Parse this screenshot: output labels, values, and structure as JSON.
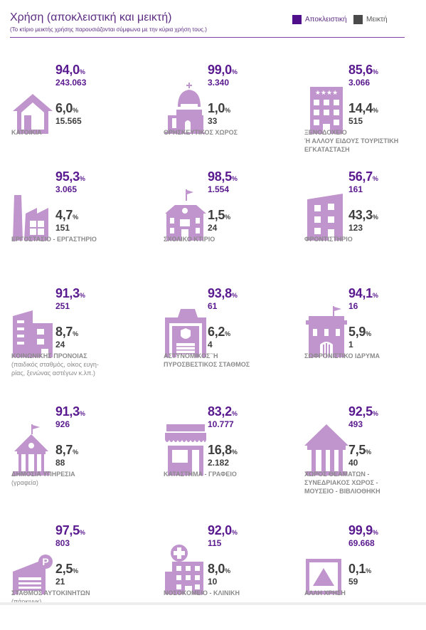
{
  "header": {
    "title": "Χρήση (αποκλειστική και μεικτή)",
    "subtitle": "(Το κτίριο μεικτής χρήσης παρουσιάζονται σύμφωνα με την κύρια χρήση τους.)",
    "legend": [
      {
        "label": "Αποκλειστική",
        "color": "#4f0f8a"
      },
      {
        "label": "Μεικτή",
        "color": "#4a4a4a"
      }
    ]
  },
  "colors": {
    "icon": "#c094cc",
    "exclusive": "#5a1a8f",
    "mixed": "#3e3e3e",
    "label": "#8a8a8a"
  },
  "percent_sign": "%",
  "items": [
    {
      "icon": "house-icon",
      "excl_pct": "94,0",
      "excl_count": "243.063",
      "mixed_pct": "6,0",
      "mixed_count": "15.565",
      "label": "ΚΑΤΟΙΚΙΑ",
      "note": ""
    },
    {
      "icon": "church-icon",
      "excl_pct": "99,0",
      "excl_count": "3.340",
      "mixed_pct": "1,0",
      "mixed_count": "33",
      "label": "ΘΡΗΣΚΕΥΤΙΚΟΣ ΧΩΡΟΣ",
      "note": ""
    },
    {
      "icon": "hotel-icon",
      "excl_pct": "85,6",
      "excl_count": "3.066",
      "mixed_pct": "14,4",
      "mixed_count": "515",
      "label": "ΞΕΝΟΔΟΧΕΙΟ\nΉ ΑΛΛΟΥ ΕΙΔΟΥΣ ΤΟΥΡΙΣΤΙΚΗ\nΕΓΚΑΤΑΣΤΑΣΗ",
      "note": ""
    },
    {
      "icon": "factory-icon",
      "excl_pct": "95,3",
      "excl_count": "3.065",
      "mixed_pct": "4,7",
      "mixed_count": "151",
      "label": "ΕΡΓΟΣΤΑΣΙΟ - ΕΡΓΑΣΤΗΡΙΟ",
      "note": ""
    },
    {
      "icon": "school-icon",
      "excl_pct": "98,5",
      "excl_count": "1.554",
      "mixed_pct": "1,5",
      "mixed_count": "24",
      "label": "ΣΧΟΛΙΚΟ ΚΤΙΡΙΟ",
      "note": ""
    },
    {
      "icon": "tutoring-building-icon",
      "excl_pct": "56,7",
      "excl_count": "161",
      "mixed_pct": "43,3",
      "mixed_count": "123",
      "label": "ΦΡΟΝΤΙΣΤΗΡΙΟ",
      "note": ""
    },
    {
      "icon": "welfare-building-icon",
      "excl_pct": "91,3",
      "excl_count": "251",
      "mixed_pct": "8,7",
      "mixed_count": "24",
      "label": "ΚΟΙΝΩΝΙΚΗΣ ΠΡΟΝΟΙΑΣ",
      "note": "(παιδικός σταθμός, οίκος ευγη-\nρίας, ξενώνας αστέγων κ.λπ.)"
    },
    {
      "icon": "police-station-icon",
      "excl_pct": "93,8",
      "excl_count": "61",
      "mixed_pct": "6,2",
      "mixed_count": "4",
      "label": "ΑΣΤΥΝΟΜΙΚΟΣ΄Ή\nΠΥΡΟΣΒΕΣΤΙΚΟΣ ΣΤΑΘΜΟΣ",
      "note": ""
    },
    {
      "icon": "prison-icon",
      "excl_pct": "94,1",
      "excl_count": "16",
      "mixed_pct": "5,9",
      "mixed_count": "1",
      "label": "ΣΩΦΡΟΝΙΣΤΙΚΟ ΙΔΡΥΜΑ",
      "note": ""
    },
    {
      "icon": "public-service-icon",
      "excl_pct": "91,3",
      "excl_count": "926",
      "mixed_pct": "8,7",
      "mixed_count": "88",
      "label": "ΔΗΜΟΣΙΑ ΥΠΗΡΕΣΙΑ",
      "note": "(γραφεία)"
    },
    {
      "icon": "shop-icon",
      "excl_pct": "83,2",
      "excl_count": "10.777",
      "mixed_pct": "16,8",
      "mixed_count": "2.182",
      "label": "ΚΑΤΑΣΤΗΜΑ - ΓΡΑΦΕΙΟ",
      "note": ""
    },
    {
      "icon": "museum-icon",
      "excl_pct": "92,5",
      "excl_count": "493",
      "mixed_pct": "7,5",
      "mixed_count": "40",
      "label": "ΧΩΡΟΣ ΘΕΑΜΑΤΩΝ -\nΣΥΝΕΔΡΙΑΚΟΣ ΧΩΡΟΣ -\nΜΟΥΣΕΙΟ - ΒΙΒΛΙΟΘΗΚΗ",
      "note": ""
    },
    {
      "icon": "parking-icon",
      "excl_pct": "97,5",
      "excl_count": "803",
      "mixed_pct": "2,5",
      "mixed_count": "21",
      "label": "ΣΤΑΘΜΟΣ ΑΥΤΟΚΙΝΗΤΩΝ",
      "note": "(πάρκινγκ)"
    },
    {
      "icon": "hospital-icon",
      "excl_pct": "92,0",
      "excl_count": "115",
      "mixed_pct": "8,0",
      "mixed_count": "10",
      "label": "ΝΟΣΟΚΟΜΕΙΟ - ΚΛΙΝΙΚΗ",
      "note": ""
    },
    {
      "icon": "other-use-icon",
      "excl_pct": "99,9",
      "excl_count": "69.668",
      "mixed_pct": "0,1",
      "mixed_count": "59",
      "label": "ΑΛΛΗ ΧΡΗΣΗ",
      "note": ""
    }
  ]
}
